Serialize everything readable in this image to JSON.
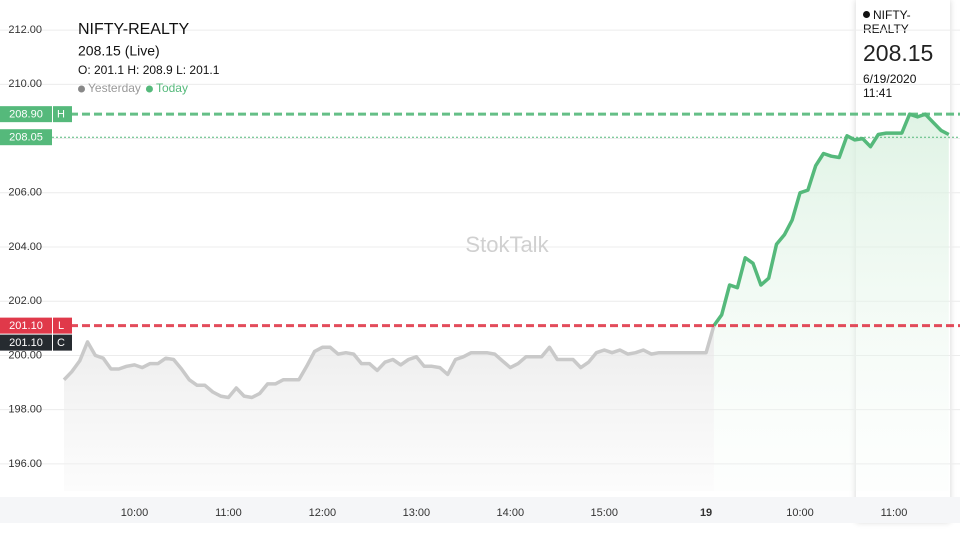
{
  "chart_data": {
    "type": "line",
    "title": "NIFTY-REALTY",
    "subtitle": "208.15 (Live)",
    "ohlc_text": "O: 201.1 H: 208.9 L: 201.1",
    "watermark": "StokTalk",
    "categories": [
      null,
      null,
      null,
      null,
      null,
      null,
      null,
      null,
      null,
      "10:00",
      null,
      null,
      null,
      null,
      null,
      null,
      null,
      null,
      null,
      null,
      null,
      "11:00",
      null,
      null,
      null,
      null,
      null,
      null,
      null,
      null,
      null,
      null,
      null,
      "12:00",
      null,
      null,
      null,
      null,
      null,
      null,
      null,
      null,
      null,
      null,
      null,
      "13:00",
      null,
      null,
      null,
      null,
      null,
      null,
      null,
      null,
      null,
      null,
      null,
      "14:00",
      null,
      null,
      null,
      null,
      null,
      null,
      null,
      null,
      null,
      null,
      null,
      "15:00",
      null,
      null,
      null,
      null,
      null,
      null,
      null,
      null,
      null,
      null,
      null,
      null,
      "19",
      null,
      null,
      null,
      null,
      null,
      null,
      null,
      null,
      null,
      null,
      null,
      "10:00",
      null,
      null,
      null,
      null,
      null,
      null,
      null,
      null,
      null,
      null,
      null,
      "11:00",
      null,
      null,
      null,
      null,
      null,
      null,
      null
    ],
    "series": [
      {
        "name": "Yesterday",
        "color": "#c9c9c9",
        "values": [
          199.1,
          199.4,
          199.8,
          200.5,
          200.0,
          199.9,
          199.5,
          199.5,
          199.6,
          199.65,
          199.55,
          199.7,
          199.7,
          199.9,
          199.85,
          199.5,
          199.1,
          198.9,
          198.9,
          198.65,
          198.5,
          198.45,
          198.8,
          198.5,
          198.45,
          198.6,
          198.95,
          198.95,
          199.1,
          199.1,
          199.1,
          199.6,
          200.15,
          200.3,
          200.3,
          200.05,
          200.1,
          200.05,
          199.7,
          199.7,
          199.45,
          199.75,
          199.85,
          199.65,
          199.85,
          199.95,
          199.6,
          199.6,
          199.55,
          199.3,
          199.85,
          199.95,
          200.1,
          200.1,
          200.1,
          200.05,
          199.8,
          199.55,
          199.7,
          199.95,
          199.95,
          199.95,
          200.3,
          199.85,
          199.85,
          199.85,
          199.55,
          199.75,
          200.1,
          200.2,
          200.1,
          200.2,
          200.05,
          200.1,
          200.2,
          200.05,
          200.1,
          200.1,
          200.1,
          200.1,
          200.1,
          200.1,
          200.1,
          201.1,
          null,
          null,
          null,
          null,
          null,
          null,
          null,
          null,
          null,
          null,
          null,
          null,
          null,
          null,
          null,
          null,
          null,
          null,
          null,
          null,
          null,
          null,
          null,
          null,
          null,
          null,
          null,
          null,
          null,
          null
        ]
      },
      {
        "name": "Today",
        "color": "#55b97b",
        "values": [
          null,
          null,
          null,
          null,
          null,
          null,
          null,
          null,
          null,
          null,
          null,
          null,
          null,
          null,
          null,
          null,
          null,
          null,
          null,
          null,
          null,
          null,
          null,
          null,
          null,
          null,
          null,
          null,
          null,
          null,
          null,
          null,
          null,
          null,
          null,
          null,
          null,
          null,
          null,
          null,
          null,
          null,
          null,
          null,
          null,
          null,
          null,
          null,
          null,
          null,
          null,
          null,
          null,
          null,
          null,
          null,
          null,
          null,
          null,
          null,
          null,
          null,
          null,
          null,
          null,
          null,
          null,
          null,
          null,
          null,
          null,
          null,
          null,
          null,
          null,
          null,
          null,
          null,
          null,
          null,
          null,
          null,
          null,
          201.1,
          201.5,
          202.6,
          202.5,
          203.6,
          203.4,
          202.6,
          202.85,
          204.1,
          204.45,
          205.0,
          206.0,
          206.1,
          207.0,
          207.45,
          207.35,
          207.3,
          208.1,
          207.95,
          208.0,
          207.7,
          208.15,
          208.2,
          208.2,
          208.2,
          208.9,
          208.8,
          208.9,
          208.6,
          208.3,
          208.15
        ]
      }
    ],
    "ylim": [
      195,
      213
    ],
    "yticks": [
      {
        "value": 196,
        "label": "196.00"
      },
      {
        "value": 198,
        "label": "198.00"
      },
      {
        "value": 200,
        "label": "200.00"
      },
      {
        "value": 202,
        "label": "202.00"
      },
      {
        "value": 204,
        "label": "204.00"
      },
      {
        "value": 206,
        "label": "206.00"
      },
      {
        "value": 208,
        "label": "208.00"
      },
      {
        "value": 210,
        "label": "210.00"
      },
      {
        "value": 212,
        "label": "212.00"
      }
    ],
    "grid": true,
    "reference_lines": [
      {
        "value": 208.9,
        "label": "208.90",
        "tag": "H",
        "color": "#55b97b",
        "style": "dashed"
      },
      {
        "value": 208.05,
        "label": "208.05",
        "color": "#55b97b",
        "style": "dotted"
      },
      {
        "value": 201.1,
        "label": "201.10",
        "tag": "L",
        "color": "#e0394a",
        "style": "dashed"
      },
      {
        "value": 201.1,
        "label": "201.10",
        "tag": "C",
        "color": "#262b30",
        "style": "none"
      }
    ],
    "tooltip": {
      "name": "NIFTY-REALTY",
      "value": "208.15",
      "date": "6/19/2020",
      "time": "11:41"
    }
  }
}
